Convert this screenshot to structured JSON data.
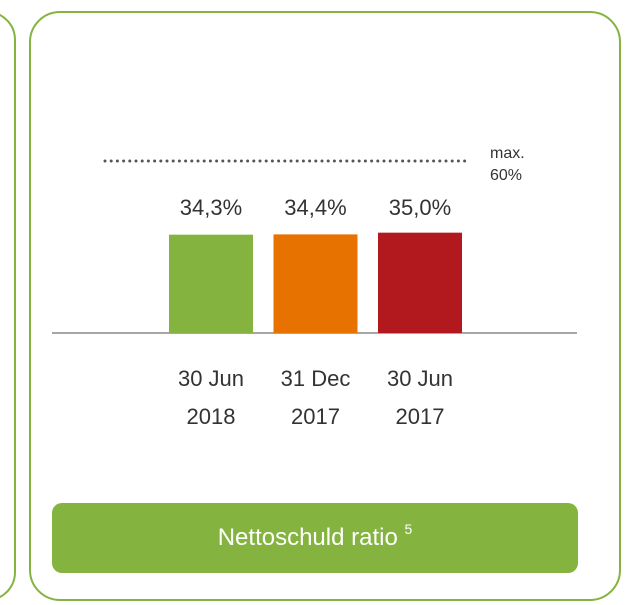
{
  "chart_data": {
    "type": "bar",
    "categories": [
      [
        "30 Jun",
        "2018"
      ],
      [
        "31 Dec",
        "2017"
      ],
      [
        "30 Jun",
        "2017"
      ]
    ],
    "values": [
      34.3,
      34.4,
      35.0
    ],
    "value_labels": [
      "34,3%",
      "34,4%",
      "35,0%"
    ],
    "colors": [
      "#84b43f",
      "#e87200",
      "#b1191f"
    ],
    "ylim": [
      0,
      60
    ],
    "threshold": {
      "value": 60,
      "label": [
        "max.",
        "60%"
      ]
    },
    "footer": {
      "text": "Nettoschuld ratio",
      "note": "5"
    }
  }
}
